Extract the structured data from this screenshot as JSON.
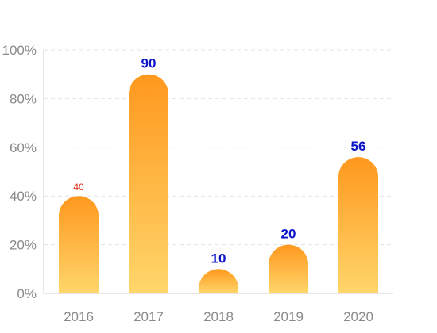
{
  "chart_data": {
    "type": "bar",
    "categories": [
      "2016",
      "2017",
      "2018",
      "2019",
      "2020"
    ],
    "values": [
      40,
      90,
      10,
      20,
      56
    ],
    "data_labels": [
      "40",
      "90",
      "10",
      "20",
      "56"
    ],
    "y_ticks": [
      "0%",
      "20%",
      "40%",
      "60%",
      "80%",
      "100%"
    ],
    "ylim": [
      0,
      100
    ],
    "grid": true,
    "title": "",
    "xlabel": "",
    "ylabel": ""
  },
  "colors": {
    "bar_top": "#FF981E",
    "bar_bottom": "#FFD66B",
    "label_highlight": "#0B14C8",
    "label_small": "#E0301E",
    "grid": "#E3E3E3",
    "axis": "#CCCCCC",
    "tick_text": "#8A8A8A"
  }
}
